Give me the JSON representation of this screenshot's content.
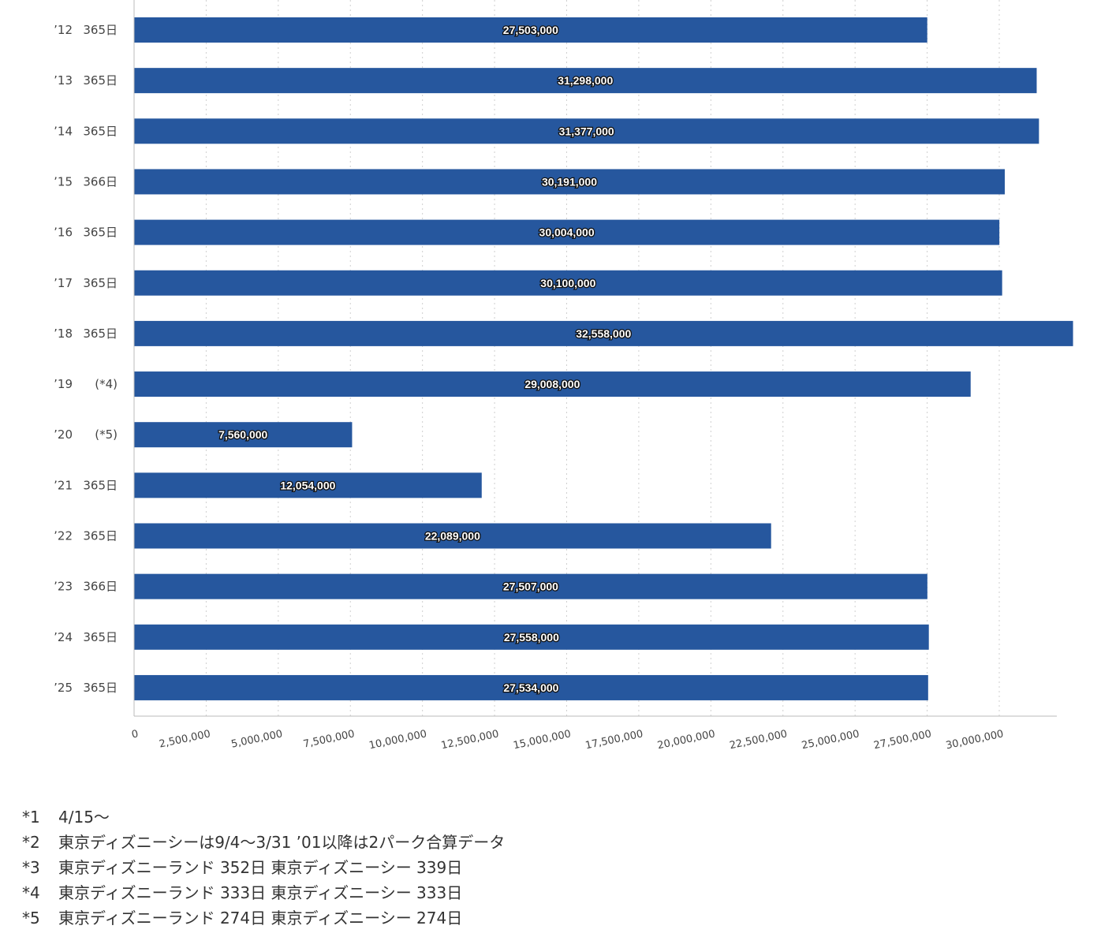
{
  "chart_data": {
    "type": "bar",
    "orientation": "horizontal",
    "categories": [
      {
        "year": "’12",
        "days": "365日"
      },
      {
        "year": "’13",
        "days": "365日"
      },
      {
        "year": "’14",
        "days": "365日"
      },
      {
        "year": "’15",
        "days": "366日"
      },
      {
        "year": "’16",
        "days": "365日"
      },
      {
        "year": "’17",
        "days": "365日"
      },
      {
        "year": "’18",
        "days": "365日"
      },
      {
        "year": "’19",
        "days": "(*4)"
      },
      {
        "year": "’20",
        "days": "(*5)"
      },
      {
        "year": "’21",
        "days": "365日"
      },
      {
        "year": "’22",
        "days": "365日"
      },
      {
        "year": "’23",
        "days": "366日"
      },
      {
        "year": "’24",
        "days": "365日"
      },
      {
        "year": "’25",
        "days": "365日"
      }
    ],
    "values": [
      27503000,
      31298000,
      31377000,
      30191000,
      30004000,
      30100000,
      32558000,
      29008000,
      7560000,
      12054000,
      22089000,
      27507000,
      27558000,
      27534000
    ],
    "value_labels": [
      "27,503,000",
      "31,298,000",
      "31,377,000",
      "30,191,000",
      "30,004,000",
      "30,100,000",
      "32,558,000",
      "29,008,000",
      "7,560,000",
      "12,054,000",
      "22,089,000",
      "27,507,000",
      "27,558,000",
      "27,534,000"
    ],
    "x_ticks": [
      0,
      2500000,
      5000000,
      7500000,
      10000000,
      12500000,
      15000000,
      17500000,
      20000000,
      22500000,
      25000000,
      27500000,
      30000000
    ],
    "x_tick_labels": [
      "0",
      "2,500,000",
      "5,000,000",
      "7,500,000",
      "10,000,000",
      "12,500,000",
      "15,000,000",
      "17,500,000",
      "20,000,000",
      "22,500,000",
      "25,000,000",
      "27,500,000",
      "30,000,000"
    ],
    "xlim": [
      0,
      32000000
    ],
    "grid": true,
    "bar_color": "#26579e",
    "title": "",
    "xlabel": "",
    "ylabel": ""
  },
  "notes": [
    {
      "mark": "*1",
      "text": "4/15〜"
    },
    {
      "mark": "*2",
      "text": "東京ディズニーシーは9/4〜3/31 ’01以降は2パーク合算データ"
    },
    {
      "mark": "*3",
      "text": "東京ディズニーランド 352日  東京ディズニーシー 339日"
    },
    {
      "mark": "*4",
      "text": "東京ディズニーランド 333日  東京ディズニーシー 333日"
    },
    {
      "mark": "*5",
      "text": "東京ディズニーランド 274日  東京ディズニーシー 274日"
    }
  ]
}
